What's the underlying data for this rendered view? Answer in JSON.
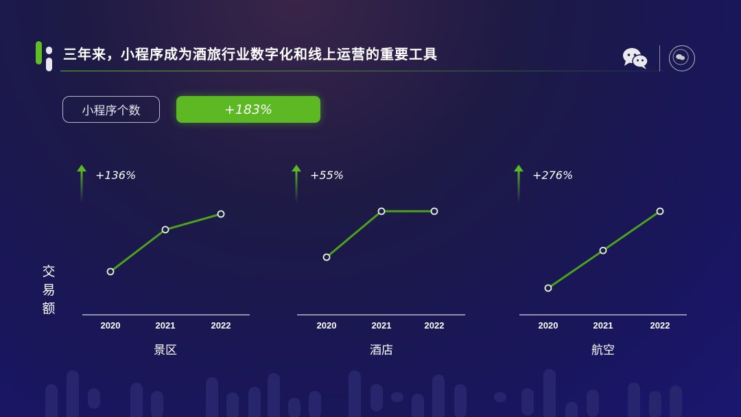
{
  "header": {
    "title": "三年来，小程序成为酒旅行业数字化和线上运营的重要工具"
  },
  "metric_tag": {
    "label": "小程序个数",
    "value": "+183%"
  },
  "y_axis_label": "交易额",
  "colors": {
    "accent": "#5cb923",
    "line": "#4da21a",
    "background": "#1b1960"
  },
  "icons": [
    "wechat-icon",
    "seal-logo-icon"
  ],
  "chart_data": [
    {
      "type": "line",
      "category": "景区",
      "growth": "+136%",
      "x": [
        "2020",
        "2021",
        "2022"
      ],
      "values": [
        100,
        199,
        236
      ]
    },
    {
      "type": "line",
      "category": "酒店",
      "growth": "+55%",
      "x": [
        "2020",
        "2021",
        "2022"
      ],
      "values": [
        100,
        155,
        155
      ]
    },
    {
      "type": "line",
      "category": "航空",
      "growth": "+276%",
      "x": [
        "2020",
        "2021",
        "2022"
      ],
      "values": [
        100,
        235,
        376
      ]
    }
  ]
}
